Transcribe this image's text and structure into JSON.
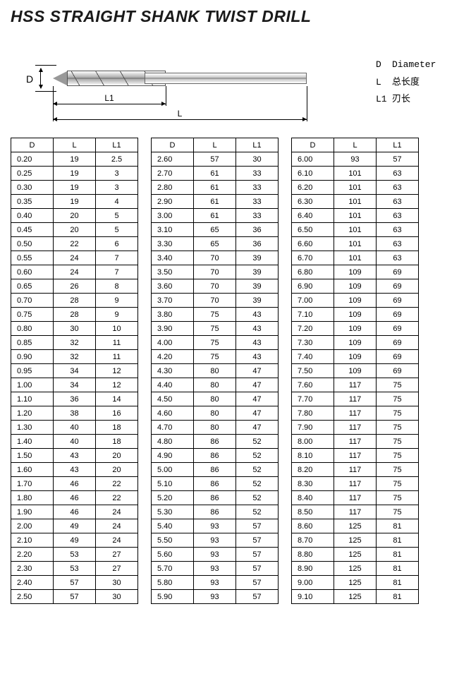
{
  "title": "HSS STRAIGHT SHANK TWIST DRILL",
  "diagram": {
    "d_label": "D",
    "l1_label": "L1",
    "l_label": "L"
  },
  "legend": {
    "d_key": "D",
    "d_val": "Diameter",
    "l_key": "L",
    "l_val": "总长度",
    "l1_key": "L1",
    "l1_val": "刃长"
  },
  "headers": [
    "D",
    "L",
    "L1"
  ],
  "tables": [
    [
      [
        "0.20",
        "19",
        "2.5"
      ],
      [
        "0.25",
        "19",
        "3"
      ],
      [
        "0.30",
        "19",
        "3"
      ],
      [
        "0.35",
        "19",
        "4"
      ],
      [
        "0.40",
        "20",
        "5"
      ],
      [
        "0.45",
        "20",
        "5"
      ],
      [
        "0.50",
        "22",
        "6"
      ],
      [
        "0.55",
        "24",
        "7"
      ],
      [
        "0.60",
        "24",
        "7"
      ],
      [
        "0.65",
        "26",
        "8"
      ],
      [
        "0.70",
        "28",
        "9"
      ],
      [
        "0.75",
        "28",
        "9"
      ],
      [
        "0.80",
        "30",
        "10"
      ],
      [
        "0.85",
        "32",
        "11"
      ],
      [
        "0.90",
        "32",
        "11"
      ],
      [
        "0.95",
        "34",
        "12"
      ],
      [
        "1.00",
        "34",
        "12"
      ],
      [
        "1.10",
        "36",
        "14"
      ],
      [
        "1.20",
        "38",
        "16"
      ],
      [
        "1.30",
        "40",
        "18"
      ],
      [
        "1.40",
        "40",
        "18"
      ],
      [
        "1.50",
        "43",
        "20"
      ],
      [
        "1.60",
        "43",
        "20"
      ],
      [
        "1.70",
        "46",
        "22"
      ],
      [
        "1.80",
        "46",
        "22"
      ],
      [
        "1.90",
        "46",
        "24"
      ],
      [
        "2.00",
        "49",
        "24"
      ],
      [
        "2.10",
        "49",
        "24"
      ],
      [
        "2.20",
        "53",
        "27"
      ],
      [
        "2.30",
        "53",
        "27"
      ],
      [
        "2.40",
        "57",
        "30"
      ],
      [
        "2.50",
        "57",
        "30"
      ]
    ],
    [
      [
        "2.60",
        "57",
        "30"
      ],
      [
        "2.70",
        "61",
        "33"
      ],
      [
        "2.80",
        "61",
        "33"
      ],
      [
        "2.90",
        "61",
        "33"
      ],
      [
        "3.00",
        "61",
        "33"
      ],
      [
        "3.10",
        "65",
        "36"
      ],
      [
        "3.30",
        "65",
        "36"
      ],
      [
        "3.40",
        "70",
        "39"
      ],
      [
        "3.50",
        "70",
        "39"
      ],
      [
        "3.60",
        "70",
        "39"
      ],
      [
        "3.70",
        "70",
        "39"
      ],
      [
        "3.80",
        "75",
        "43"
      ],
      [
        "3.90",
        "75",
        "43"
      ],
      [
        "4.00",
        "75",
        "43"
      ],
      [
        "4.20",
        "75",
        "43"
      ],
      [
        "4.30",
        "80",
        "47"
      ],
      [
        "4.40",
        "80",
        "47"
      ],
      [
        "4.50",
        "80",
        "47"
      ],
      [
        "4.60",
        "80",
        "47"
      ],
      [
        "4.70",
        "80",
        "47"
      ],
      [
        "4.80",
        "86",
        "52"
      ],
      [
        "4.90",
        "86",
        "52"
      ],
      [
        "5.00",
        "86",
        "52"
      ],
      [
        "5.10",
        "86",
        "52"
      ],
      [
        "5.20",
        "86",
        "52"
      ],
      [
        "5.30",
        "86",
        "52"
      ],
      [
        "5.40",
        "93",
        "57"
      ],
      [
        "5.50",
        "93",
        "57"
      ],
      [
        "5.60",
        "93",
        "57"
      ],
      [
        "5.70",
        "93",
        "57"
      ],
      [
        "5.80",
        "93",
        "57"
      ],
      [
        "5.90",
        "93",
        "57"
      ]
    ],
    [
      [
        "6.00",
        "93",
        "57"
      ],
      [
        "6.10",
        "101",
        "63"
      ],
      [
        "6.20",
        "101",
        "63"
      ],
      [
        "6.30",
        "101",
        "63"
      ],
      [
        "6.40",
        "101",
        "63"
      ],
      [
        "6.50",
        "101",
        "63"
      ],
      [
        "6.60",
        "101",
        "63"
      ],
      [
        "6.70",
        "101",
        "63"
      ],
      [
        "6.80",
        "109",
        "69"
      ],
      [
        "6.90",
        "109",
        "69"
      ],
      [
        "7.00",
        "109",
        "69"
      ],
      [
        "7.10",
        "109",
        "69"
      ],
      [
        "7.20",
        "109",
        "69"
      ],
      [
        "7.30",
        "109",
        "69"
      ],
      [
        "7.40",
        "109",
        "69"
      ],
      [
        "7.50",
        "109",
        "69"
      ],
      [
        "7.60",
        "117",
        "75"
      ],
      [
        "7.70",
        "117",
        "75"
      ],
      [
        "7.80",
        "117",
        "75"
      ],
      [
        "7.90",
        "117",
        "75"
      ],
      [
        "8.00",
        "117",
        "75"
      ],
      [
        "8.10",
        "117",
        "75"
      ],
      [
        "8.20",
        "117",
        "75"
      ],
      [
        "8.30",
        "117",
        "75"
      ],
      [
        "8.40",
        "117",
        "75"
      ],
      [
        "8.50",
        "117",
        "75"
      ],
      [
        "8.60",
        "125",
        "81"
      ],
      [
        "8.70",
        "125",
        "81"
      ],
      [
        "8.80",
        "125",
        "81"
      ],
      [
        "8.90",
        "125",
        "81"
      ],
      [
        "9.00",
        "125",
        "81"
      ],
      [
        "9.10",
        "125",
        "81"
      ]
    ]
  ]
}
